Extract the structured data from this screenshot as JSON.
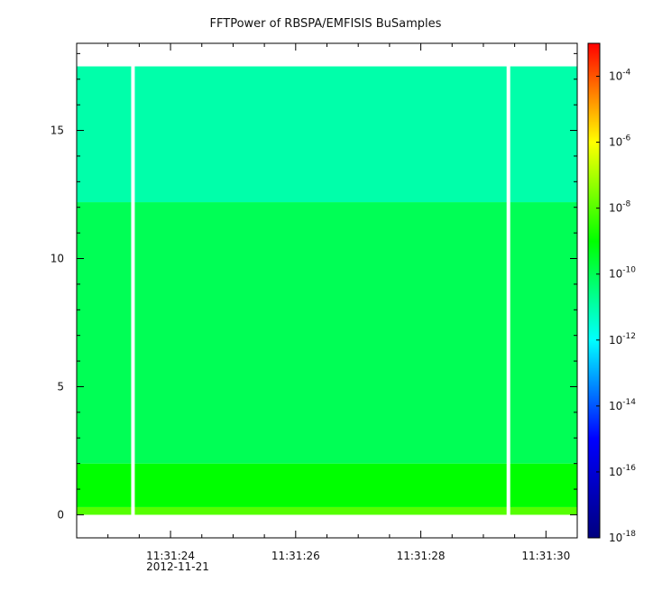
{
  "chart_data": {
    "type": "heatmap",
    "title": "FFTPower of RBSPA/EMFISIS  BuSamples",
    "xlabel": "",
    "ylabel": "",
    "x_tick_labels": [
      "11:31:24",
      "11:31:26",
      "11:31:28",
      "11:31:30"
    ],
    "x_date_label": "2012-11-21",
    "x_range": [
      "11:31:22.5",
      "11:31:30.5"
    ],
    "y_ticks": [
      0,
      5,
      10,
      15
    ],
    "y_range": [
      -0.9,
      18.4
    ],
    "data_y_range": [
      0,
      17.5
    ],
    "gaps": [
      "11:31:23.4",
      "11:31:29.4"
    ],
    "colorbar": {
      "scale": "log",
      "range": [
        1e-18,
        0.001
      ],
      "tick_labels": [
        {
          "base": "10",
          "exp": "-4",
          "value": 0.0001
        },
        {
          "base": "10",
          "exp": "-6",
          "value": 1e-06
        },
        {
          "base": "10",
          "exp": "-8",
          "value": 1e-08
        },
        {
          "base": "10",
          "exp": "-10",
          "value": 1e-10
        },
        {
          "base": "10",
          "exp": "-12",
          "value": 1e-12
        },
        {
          "base": "10",
          "exp": "-14",
          "value": 1e-14
        },
        {
          "base": "10",
          "exp": "-16",
          "value": 1e-16
        },
        {
          "base": "10",
          "exp": "-18",
          "value": 1e-18
        }
      ],
      "colors": [
        "#00007f",
        "#0000ff",
        "#00ffff",
        "#00ff00",
        "#ffff00",
        "#ff0000"
      ]
    },
    "power_profile": [
      {
        "freq_range": [
          0,
          0.3
        ],
        "power": 1e-08
      },
      {
        "freq_range": [
          0.3,
          2
        ],
        "power": 1e-09
      },
      {
        "freq_range": [
          2,
          12.2
        ],
        "power": 1e-10
      },
      {
        "freq_range": [
          12.2,
          17.5
        ],
        "power": 1e-11
      }
    ]
  }
}
